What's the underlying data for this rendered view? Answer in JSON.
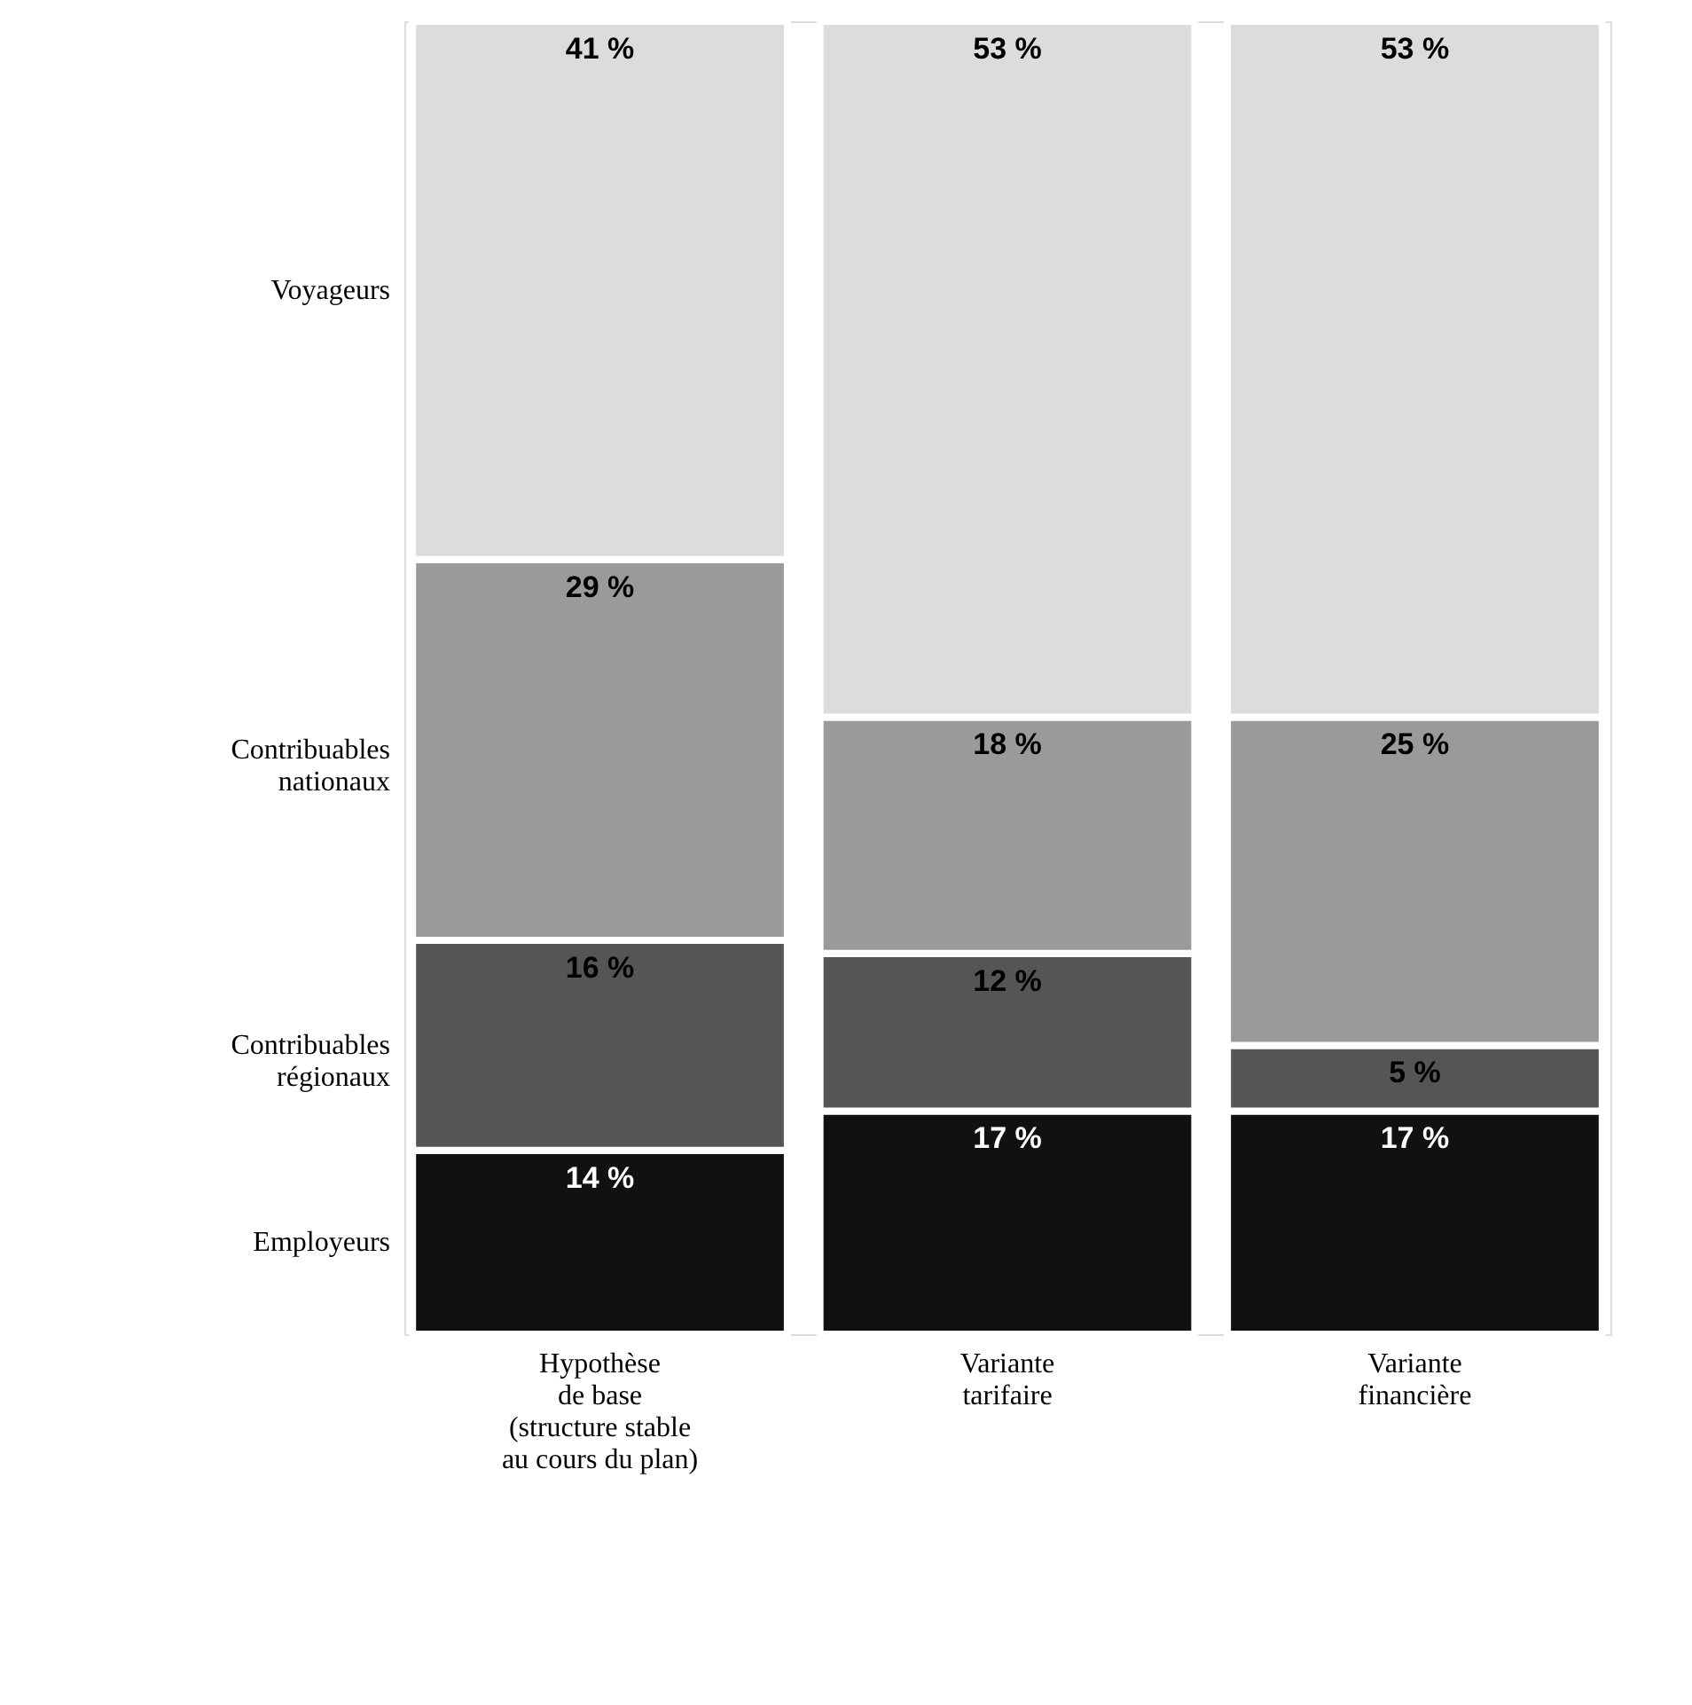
{
  "chart_data": {
    "type": "bar",
    "stacked": true,
    "categories": [
      "Hypothèse\nde base\n(structure stable\nau cours du plan)",
      "Variante\ntarifaire",
      "Variante\nfinancière"
    ],
    "series": [
      {
        "name": "Employeurs",
        "color": "#111111",
        "values": [
          14,
          17,
          17
        ],
        "value_labels": [
          "14 %",
          "17 %",
          "17 %"
        ]
      },
      {
        "name": "Contribuables\nrégionaux",
        "color": "#555555",
        "values": [
          16,
          12,
          5
        ],
        "value_labels": [
          "16 %",
          "12 %",
          "5 %"
        ]
      },
      {
        "name": "Contribuables\nnationaux",
        "color": "#9a9a9a",
        "values": [
          29,
          18,
          25
        ],
        "value_labels": [
          "29 %",
          "18 %",
          "25 %"
        ]
      },
      {
        "name": "Voyageurs",
        "color": "#dcdcdc",
        "values": [
          41,
          53,
          53
        ],
        "value_labels": [
          "41 %",
          "53 %",
          "53 %"
        ]
      }
    ]
  }
}
